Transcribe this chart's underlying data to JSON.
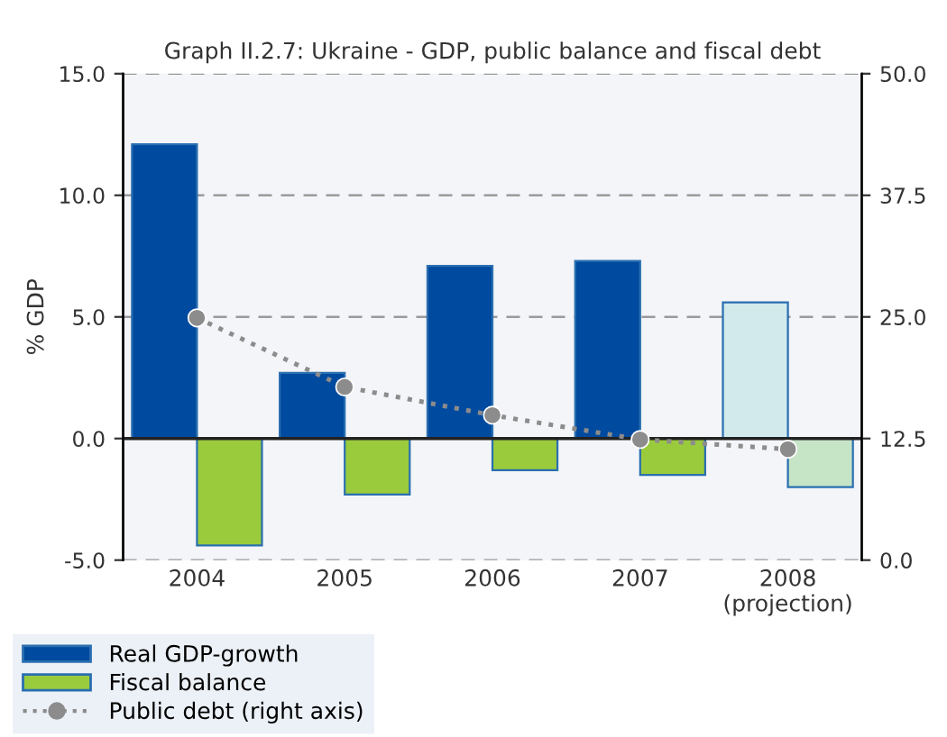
{
  "chart_data": {
    "type": "bar",
    "title": "Graph II.2.7: Ukraine - GDP, public balance and fiscal debt",
    "ylabel": "% GDP",
    "categories": [
      "2004",
      "2005",
      "2006",
      "2007",
      "2008\n(projection)"
    ],
    "series": [
      {
        "name": "Real GDP-growth",
        "color": "#004a9f",
        "colors": [
          "#004a9f",
          "#004a9f",
          "#004a9f",
          "#004a9f",
          "#d2eaec"
        ],
        "values": [
          12.1,
          2.7,
          7.1,
          7.3,
          5.6
        ]
      },
      {
        "name": "Fiscal balance",
        "color": "#9acb3c",
        "colors": [
          "#9acb3c",
          "#9acb3c",
          "#9acb3c",
          "#9acb3c",
          "#c6e4c6"
        ],
        "values": [
          -4.4,
          -2.3,
          -1.3,
          -1.5,
          -2.0
        ]
      },
      {
        "name": "Public debt (right axis)",
        "type": "line",
        "axis": "y2",
        "color": "#8c8c8c",
        "values": [
          24.9,
          17.8,
          14.9,
          12.4,
          11.4
        ]
      }
    ],
    "ylim": [
      -5,
      15
    ],
    "yticks": [
      {
        "value": -5,
        "label": "-5.0"
      },
      {
        "value": 0,
        "label": "0.0"
      },
      {
        "value": 5,
        "label": "5.0"
      },
      {
        "value": 10,
        "label": "10.0"
      },
      {
        "value": 15,
        "label": "15.0"
      }
    ],
    "y2lim": [
      0,
      50
    ],
    "y2ticks": [
      {
        "value": 0,
        "label": "0.0"
      },
      {
        "value": 12.5,
        "label": "12.5"
      },
      {
        "value": 25,
        "label": "25.0"
      },
      {
        "value": 37.5,
        "label": "37.5"
      },
      {
        "value": 50,
        "label": "50.0"
      }
    ],
    "grid": "y",
    "legend": "bottom left",
    "marker": "circle",
    "line_style": "dotted"
  }
}
